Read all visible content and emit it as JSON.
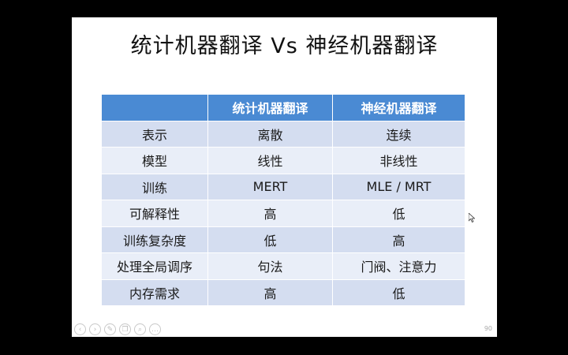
{
  "slide": {
    "title": "统计机器翻译  Vs  神经机器翻译",
    "page_number": "90"
  },
  "table": {
    "headers": [
      "",
      "统计机器翻译",
      "神经机器翻译"
    ],
    "rows": [
      [
        "表示",
        "离散",
        "连续"
      ],
      [
        "模型",
        "线性",
        "非线性"
      ],
      [
        "训练",
        "MERT",
        "MLE / MRT"
      ],
      [
        "可解释性",
        "高",
        "低"
      ],
      [
        "训练复杂度",
        "低",
        "高"
      ],
      [
        "处理全局调序",
        "句法",
        "门阀、注意力"
      ],
      [
        "内存需求",
        "高",
        "低"
      ]
    ]
  },
  "controls": {
    "icons": [
      "prev-icon",
      "next-icon",
      "pen-icon",
      "copy-icon",
      "zoom-icon",
      "more-icon"
    ],
    "glyphs": [
      "‹",
      "›",
      "✎",
      "❐",
      "⌕",
      "…"
    ]
  },
  "colors": {
    "header_bg": "#4a8ad3",
    "row_odd_bg": "#d4ddf0",
    "row_even_bg": "#e9eef8",
    "frame_bg": "#000000"
  }
}
